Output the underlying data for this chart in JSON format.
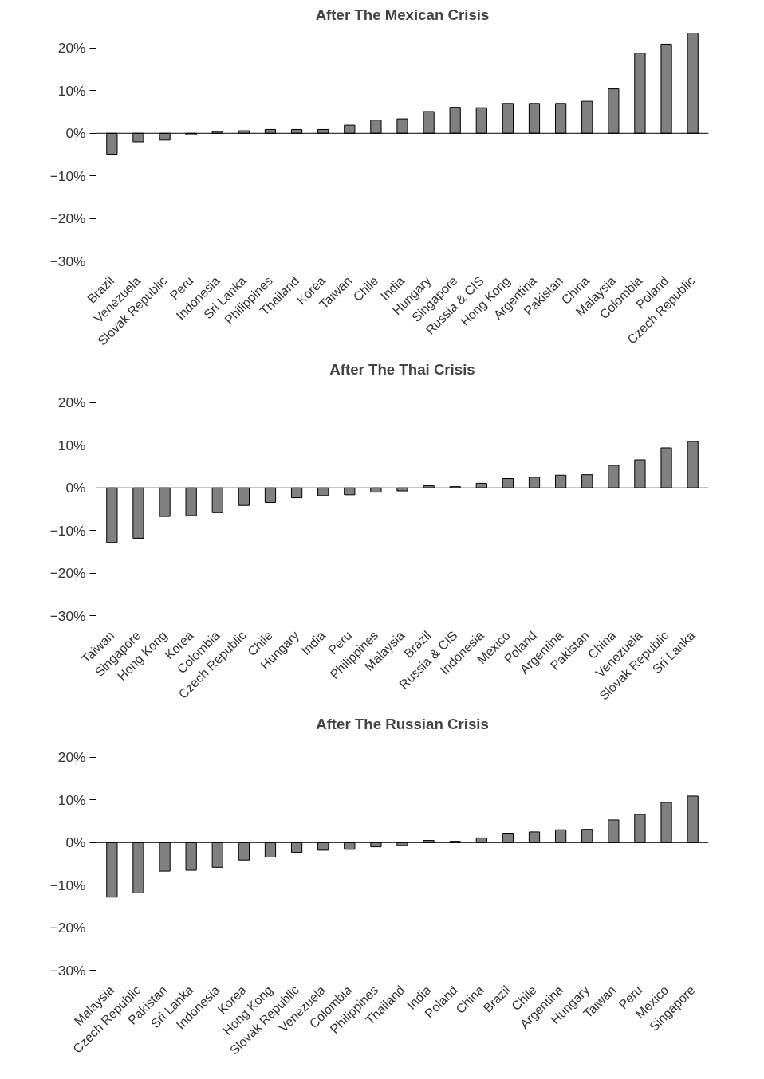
{
  "chart_data": [
    {
      "type": "bar",
      "title": "After The Mexican Crisis",
      "categories": [
        "Brazil",
        "Venezuela",
        "Slovak Republic",
        "Peru",
        "Indonesia",
        "Sri Lanka",
        "Philippines",
        "Thailand",
        "Korea",
        "Taiwan",
        "Chile",
        "India",
        "Hungary",
        "Singapore",
        "Russia & CIS",
        "Hong Kong",
        "Argentina",
        "Pakistan",
        "China",
        "Malaysia",
        "Colombia",
        "Poland",
        "Czech Republic"
      ],
      "series": [
        {
          "color": "#808080",
          "values": [
            -4.9,
            -2.0,
            -1.6,
            -0.4,
            0.4,
            0.6,
            0.9,
            0.9,
            0.9,
            1.9,
            3.1,
            3.4,
            5.1,
            6.1,
            6.0,
            7.0,
            7.0,
            7.0,
            7.5,
            10.4,
            18.8,
            20.9,
            23.5
          ]
        }
      ],
      "ylim": [
        -32,
        25
      ],
      "yticks": [
        {
          "value": -30,
          "label": "−30%"
        },
        {
          "value": -20,
          "label": "−20%"
        },
        {
          "value": -10,
          "label": "−10%"
        },
        {
          "value": 0,
          "label": "0%"
        },
        {
          "value": 10,
          "label": "10%"
        },
        {
          "value": 20,
          "label": "20%"
        }
      ],
      "ref_lines": [
        {
          "axis": "y",
          "value": 0,
          "color": "#000000"
        }
      ]
    },
    {
      "type": "bar",
      "title": "After The Thai Crisis",
      "categories": [
        "Taiwan",
        "Singapore",
        "Hong Kong",
        "Korea",
        "Colombia",
        "Czech Republic",
        "Chile",
        "Hungary",
        "India",
        "Peru",
        "Philippines",
        "Malaysia",
        "Brazil",
        "Russia & CIS",
        "Indonesia",
        "Mexico",
        "Poland",
        "Argentina",
        "Pakistan",
        "China",
        "Venezuela",
        "Slovak Republic",
        "Sri Lanka"
      ],
      "series": [
        {
          "color": "#808080",
          "values": [
            -12.8,
            -11.8,
            -6.7,
            -6.5,
            -5.8,
            -4.1,
            -3.4,
            -2.3,
            -1.8,
            -1.6,
            -1.0,
            -0.7,
            0.5,
            0.3,
            1.1,
            2.2,
            2.5,
            3.0,
            3.1,
            5.3,
            6.6,
            9.4,
            10.9
          ]
        }
      ],
      "ylim": [
        -32,
        25
      ],
      "yticks": [
        {
          "value": -30,
          "label": "−30%"
        },
        {
          "value": -20,
          "label": "−20%"
        },
        {
          "value": -10,
          "label": "−10%"
        },
        {
          "value": 0,
          "label": "0%"
        },
        {
          "value": 10,
          "label": "10%"
        },
        {
          "value": 20,
          "label": "20%"
        }
      ],
      "ref_lines": [
        {
          "axis": "y",
          "value": 0,
          "color": "#000000"
        }
      ]
    },
    {
      "type": "bar",
      "title": "After The Russian Crisis",
      "categories": [
        "Malaysia",
        "Czech Republic",
        "Pakistan",
        "Sri Lanka",
        "Indonesia",
        "Korea",
        "Hong Kong",
        "Slovak Republic",
        "Venezuela",
        "Colombia",
        "Philippines",
        "Thailand",
        "India",
        "Poland",
        "China",
        "Brazil",
        "Chile",
        "Argentina",
        "Hungary",
        "Taiwan",
        "Peru",
        "Mexico",
        "Singapore"
      ],
      "series": [
        {
          "color": "#808080",
          "values": [
            -12.8,
            -11.8,
            -6.7,
            -6.5,
            -5.8,
            -4.1,
            -3.4,
            -2.3,
            -1.8,
            -1.6,
            -1.0,
            -0.7,
            0.5,
            0.3,
            1.1,
            2.2,
            2.5,
            3.0,
            3.1,
            5.3,
            6.6,
            9.4,
            10.9
          ]
        }
      ],
      "ylim": [
        -32,
        25
      ],
      "yticks": [
        {
          "value": -30,
          "label": "−30%"
        },
        {
          "value": -20,
          "label": "−20%"
        },
        {
          "value": -10,
          "label": "−10%"
        },
        {
          "value": 0,
          "label": "0%"
        },
        {
          "value": 10,
          "label": "10%"
        },
        {
          "value": 20,
          "label": "20%"
        }
      ],
      "ref_lines": [
        {
          "axis": "y",
          "value": 0,
          "color": "#000000"
        }
      ]
    }
  ]
}
